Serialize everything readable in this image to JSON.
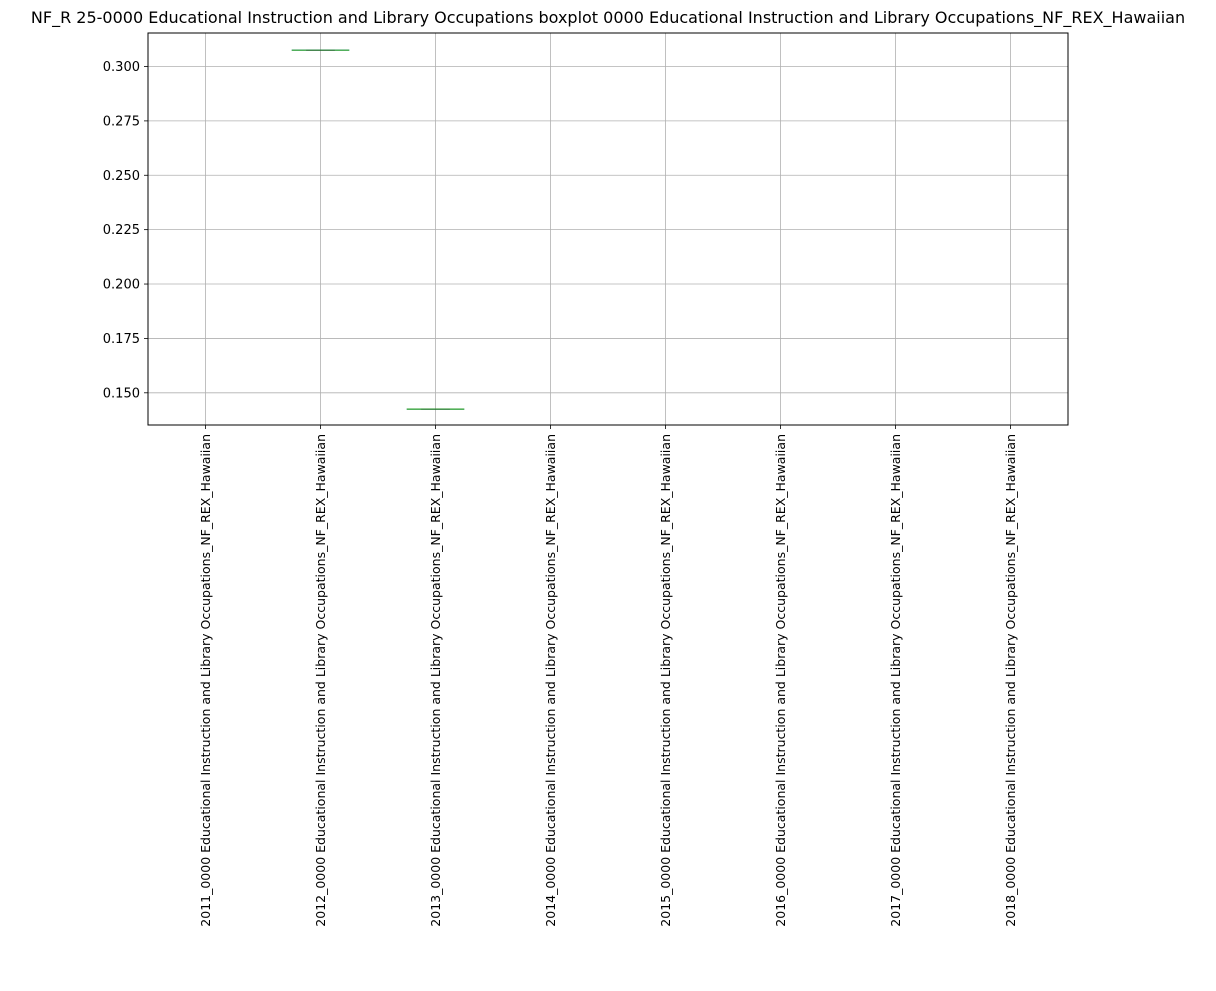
{
  "chart_data": {
    "type": "boxplot",
    "title": "NF_R 25-0000 Educational Instruction and Library Occupations boxplot 0000 Educational Instruction and Library Occupations_NF_REX_Hawaiian",
    "xlabel": "",
    "ylabel": "",
    "ylim": [
      0.1352,
      0.3154
    ],
    "yticks": [
      0.15,
      0.175,
      0.2,
      0.225,
      0.25,
      0.275,
      0.3
    ],
    "ytick_labels": [
      "0.150",
      "0.175",
      "0.200",
      "0.225",
      "0.250",
      "0.275",
      "0.300"
    ],
    "grid": true,
    "categories": [
      "2011_0000 Educational Instruction and Library Occupations_NF_REX_Hawaiian",
      "2012_0000 Educational Instruction and Library Occupations_NF_REX_Hawaiian",
      "2013_0000 Educational Instruction and Library Occupations_NF_REX_Hawaiian",
      "2014_0000 Educational Instruction and Library Occupations_NF_REX_Hawaiian",
      "2015_0000 Educational Instruction and Library Occupations_NF_REX_Hawaiian",
      "2016_0000 Educational Instruction and Library Occupations_NF_REX_Hawaiian",
      "2017_0000 Educational Instruction and Library Occupations_NF_REX_Hawaiian",
      "2018_0000 Educational Instruction and Library Occupations_NF_REX_Hawaiian"
    ],
    "values": [
      null,
      0.3075,
      0.1425,
      null,
      null,
      null,
      null,
      null
    ],
    "colors": {
      "box": "#1f77b4",
      "median": "#2ca02c",
      "grid": "#b0b0b0",
      "axes": "#000000"
    }
  }
}
